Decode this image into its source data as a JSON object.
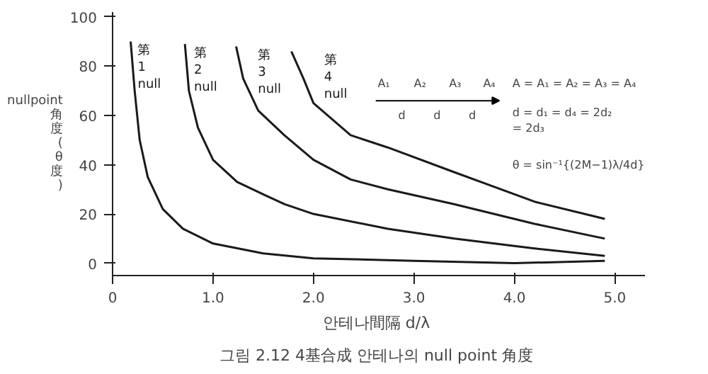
{
  "chart_data": {
    "type": "line",
    "title": "그림 2.12  4基合成 안테나의 null point 角度",
    "xlabel": "안테나間隔  d/λ",
    "ylabel": "nullpoint\n角度(θ度)",
    "xlim": [
      0,
      5.3
    ],
    "ylim": [
      -5,
      102
    ],
    "xticks": [
      0,
      {
        "value": 1,
        "label": "1.0"
      },
      {
        "value": 2,
        "label": "2.0"
      },
      {
        "value": 3,
        "label": "3.0"
      },
      {
        "value": 4,
        "label": "4.0"
      },
      {
        "value": 5,
        "label": "5.0"
      }
    ],
    "yticks": [
      0,
      20,
      40,
      60,
      80,
      100
    ],
    "grid": false,
    "marker": "none",
    "line_style": "solid",
    "series": [
      {
        "name": "第\n1\nnull",
        "color": "#1a1a1a",
        "x": [
          0.18,
          0.22,
          0.27,
          0.35,
          0.5,
          0.7,
          1.0,
          1.5,
          2.0,
          3.0,
          4.0,
          4.9
        ],
        "values": [
          90,
          70,
          50,
          35,
          22,
          14,
          8,
          4,
          2,
          1,
          0,
          1
        ]
      },
      {
        "name": "第\n2\nnull",
        "color": "#1a1a1a",
        "x": [
          0.72,
          0.76,
          0.85,
          1.0,
          1.24,
          1.5,
          1.71,
          2.0,
          2.74,
          3.4,
          4.2,
          4.9
        ],
        "values": [
          89,
          70,
          55,
          42,
          33,
          28,
          24,
          20,
          14,
          10,
          6,
          3
        ]
      },
      {
        "name": "第\n3\nnull",
        "color": "#1a1a1a",
        "x": [
          1.23,
          1.3,
          1.45,
          1.71,
          2.0,
          2.37,
          2.74,
          3.4,
          4.2,
          4.9
        ],
        "values": [
          88,
          75,
          62,
          52,
          42,
          34,
          30,
          24,
          16,
          10
        ]
      },
      {
        "name": "第\n4\nnull",
        "color": "#1a1a1a",
        "x": [
          1.78,
          1.9,
          2.0,
          2.37,
          2.74,
          3.4,
          4.2,
          4.9
        ],
        "values": [
          86,
          75,
          65,
          52,
          47,
          37,
          25,
          18
        ]
      }
    ],
    "annotations": [
      "A₁",
      "A₂",
      "A₃",
      "A₄",
      "d",
      "d",
      "d",
      "A = A₁ = A₂ = A₃ = A₄",
      "d = d₁ = d₄ = 2d₂\n   = 2d₃",
      "θ = sin⁻¹{(2M−1)λ/4d}"
    ]
  }
}
